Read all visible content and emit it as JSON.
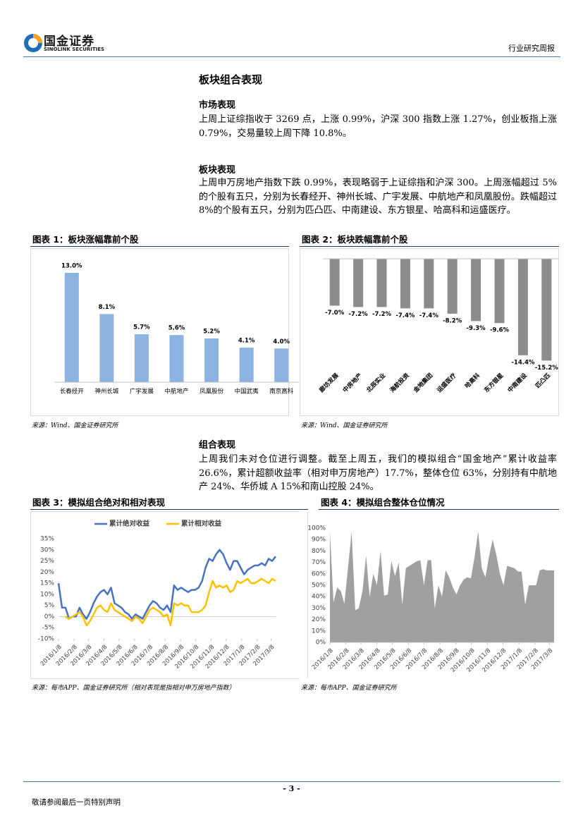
{
  "header": {
    "logo_cn": "国金证券",
    "logo_en": "SINOLINK SECURITIES",
    "report_type": "行业研究周报"
  },
  "title": "板块组合表现",
  "sections": [
    {
      "heading": "市场表现",
      "text": "上周上证综指收于 3269 点，上涨 0.99%，沪深 300 指数上涨 1.27%，创业板指上涨 0.79%，交易量较上周下降 10.8%。"
    },
    {
      "heading": "板块表现",
      "text": "上周申万房地产指数下跌 0.99%，表现略弱于上证综指和沪深 300。上周涨幅超过 5%的个股有五只，分别为长春经开、神州长城、广宇发展、中航地产和凤凰股份。跌幅超过 8%的个股有五只，分别为匹凸匹、中南建设、东方银星、哈高科和运盛医疗。"
    },
    {
      "heading": "组合表现",
      "text": "上周我们未对仓位进行调整。截至上周五，我们的模拟组合“国金地产”累计收益率 26.6%，累计超额收益率（相对申万房地产）17.7%，整体仓位 63%，分别持有中航地产 24%、华侨城 A 15%和南山控股 24%。"
    }
  ],
  "figures": [
    {
      "title": "图表 1：板块涨幅靠前个股",
      "source": "来源：Wind、国金证券研究所",
      "chart": {
        "type": "bar",
        "color": "#8db3e2",
        "categories": [
          "长春经开",
          "神州长城",
          "广宇发展",
          "中航地产",
          "凤凰股份",
          "中国武夷",
          "南京高科"
        ],
        "values": [
          13.0,
          8.1,
          5.7,
          5.6,
          5.2,
          4.1,
          4.0
        ],
        "value_labels": [
          "13.0%",
          "8.1%",
          "5.7%",
          "5.6%",
          "5.2%",
          "4.1%",
          "4.0%"
        ],
        "ylim": [
          0,
          14
        ]
      }
    },
    {
      "title": "图表 2：板块跌幅靠前个股",
      "source": "来源：Wind、国金证券研究所",
      "chart": {
        "type": "bar",
        "color": "#8c8c8c",
        "categories": [
          "廊坊发展",
          "中房地产",
          "北辰实业",
          "海航投资",
          "金地集团",
          "运盛医疗",
          "哈高科",
          "东方银星",
          "中南建设",
          "匹凸匹"
        ],
        "values": [
          -7.0,
          -7.2,
          -7.2,
          -7.4,
          -7.4,
          -8.2,
          -9.3,
          -9.6,
          -14.4,
          -15.2
        ],
        "value_labels": [
          "-7.0%",
          "-7.2%",
          "-7.2%",
          "-7.4%",
          "-7.4%",
          "-8.2%",
          "-9.3%",
          "-9.6%",
          "-14.4%",
          "-15.2%"
        ],
        "ylim": [
          -16,
          0
        ]
      }
    },
    {
      "title": "图表 3：模拟组合绝对和相对表现",
      "source": "来源：每市APP、国金证券研究所（相对表现是指相对申万房地产指数）",
      "chart": {
        "type": "line",
        "grid": false,
        "x": [
          "2016/1/8",
          "2016/1/15",
          "2016/1/22",
          "2016/1/29",
          "2016/2/5",
          "2016/2/12",
          "2016/2/19",
          "2016/2/26",
          "2016/3/4",
          "2016/3/11",
          "2016/3/18",
          "2016/3/25",
          "2016/4/1",
          "2016/4/8",
          "2016/4/15",
          "2016/4/22",
          "2016/4/29",
          "2016/5/6",
          "2016/5/13",
          "2016/5/20",
          "2016/5/27",
          "2016/6/3",
          "2016/6/10",
          "2016/6/17",
          "2016/6/24",
          "2016/7/1",
          "2016/7/8",
          "2016/7/15",
          "2016/7/22",
          "2016/7/29",
          "2016/8/5",
          "2016/8/12",
          "2016/8/19",
          "2016/8/26",
          "2016/9/2",
          "2016/9/9",
          "2016/9/16",
          "2016/9/23",
          "2016/9/30",
          "2016/10/7",
          "2016/10/14",
          "2016/10/21",
          "2016/10/28",
          "2016/11/4",
          "2016/11/11",
          "2016/11/18",
          "2016/11/25",
          "2016/12/2",
          "2016/12/9",
          "2016/12/16",
          "2016/12/23",
          "2016/12/30",
          "2017/1/6",
          "2017/1/13",
          "2017/1/20",
          "2017/1/27",
          "2017/2/3",
          "2017/2/10",
          "2017/2/17",
          "2017/2/24",
          "2017/3/3",
          "2017/3/10",
          "2017/3/17"
        ],
        "series": [
          {
            "name": "累计绝对收益",
            "color": "#4472c4",
            "values": [
              15,
              4,
              4,
              -1,
              0,
              0,
              4,
              1,
              -1,
              2,
              6,
              9,
              11,
              12,
              10,
              13,
              6,
              5,
              4,
              2,
              1,
              -1,
              1,
              0,
              -1,
              2,
              5,
              7,
              6,
              4,
              3,
              5,
              2,
              14,
              12,
              13,
              12,
              11,
              12,
              12,
              13,
              16,
              22,
              26,
              25,
              28,
              30,
              28,
              24,
              21,
              25,
              25,
              22,
              19,
              21,
              22,
              23,
              23,
              24,
              23,
              26,
              25,
              27
            ]
          },
          {
            "name": "累计相对收益",
            "color": "#ffc000",
            "values": [
              null,
              null,
              0,
              -1,
              0,
              1,
              2,
              0,
              -4,
              -2,
              1,
              4,
              5,
              3,
              2,
              6,
              3,
              2,
              1,
              0,
              -1,
              -2,
              0,
              -1,
              -3,
              0,
              3,
              4,
              3,
              2,
              0,
              1,
              -4,
              6,
              5,
              6,
              5,
              5,
              2,
              2,
              2,
              3,
              5,
              11,
              16,
              13,
              14,
              13,
              14,
              11,
              12,
              16,
              15,
              16,
              17,
              15,
              15,
              16,
              17,
              16,
              15,
              17,
              16
            ]
          }
        ],
        "xlim": [
          "2016/1/8",
          "2017/3/17"
        ],
        "xticks": [
          "2016/1/8",
          "2016/2/8",
          "2016/3/8",
          "2016/4/8",
          "2016/5/8",
          "2016/6/8",
          "2016/7/8",
          "2016/8/8",
          "2016/9/8",
          "2016/10/8",
          "2016/11/8",
          "2016/12/8",
          "2017/1/8",
          "2017/2/8",
          "2017/3/8"
        ],
        "ylim": [
          -10,
          35
        ],
        "yticks": [
          {
            "value": -10,
            "label": "-10%"
          },
          {
            "value": -5,
            "label": "-5%"
          },
          {
            "value": 0,
            "label": "0%"
          },
          {
            "value": 5,
            "label": "5%"
          },
          {
            "value": 10,
            "label": "10%"
          },
          {
            "value": 15,
            "label": "15%"
          },
          {
            "value": 20,
            "label": "20%"
          },
          {
            "value": 25,
            "label": "25%"
          },
          {
            "value": 30,
            "label": "30%"
          },
          {
            "value": 35,
            "label": "35%"
          }
        ],
        "legend": "top"
      }
    },
    {
      "title": "图表 4：模拟组合整体仓位情况",
      "source": "来源：每市APP、国金证券研究所",
      "chart": {
        "type": "area",
        "color": "#a0a0a0",
        "grid": false,
        "x": [
          "2016/1/8",
          "2016/1/15",
          "2016/1/22",
          "2016/1/29",
          "2016/2/5",
          "2016/2/12",
          "2016/2/19",
          "2016/2/26",
          "2016/3/4",
          "2016/3/11",
          "2016/3/18",
          "2016/3/25",
          "2016/4/1",
          "2016/4/8",
          "2016/4/15",
          "2016/4/22",
          "2016/4/29",
          "2016/5/6",
          "2016/5/13",
          "2016/5/20",
          "2016/5/27",
          "2016/6/3",
          "2016/6/10",
          "2016/6/17",
          "2016/6/24",
          "2016/7/1",
          "2016/7/8",
          "2016/7/15",
          "2016/7/22",
          "2016/7/29",
          "2016/8/5",
          "2016/8/12",
          "2016/8/19",
          "2016/8/26",
          "2016/9/2",
          "2016/9/9",
          "2016/9/16",
          "2016/9/23",
          "2016/9/30",
          "2016/10/7",
          "2016/10/14",
          "2016/10/21",
          "2016/10/28",
          "2016/11/4",
          "2016/11/11",
          "2016/11/18",
          "2016/11/25",
          "2016/12/2",
          "2016/12/9",
          "2016/12/16",
          "2016/12/23",
          "2016/12/30",
          "2017/1/6",
          "2017/1/13",
          "2017/1/20",
          "2017/1/27",
          "2017/2/3",
          "2017/2/10",
          "2017/2/17",
          "2017/2/24",
          "2017/3/3",
          "2017/3/10",
          "2017/3/17"
        ],
        "values": [
          97,
          35,
          48,
          45,
          34,
          65,
          97,
          28,
          30,
          45,
          76,
          40,
          60,
          50,
          80,
          41,
          42,
          71,
          58,
          70,
          33,
          65,
          67,
          69,
          71,
          72,
          50,
          72,
          72,
          30,
          50,
          40,
          63,
          57,
          48,
          42,
          50,
          55,
          57,
          56,
          75,
          97,
          65,
          57,
          75,
          90,
          77,
          60,
          50,
          67,
          66,
          65,
          62,
          62,
          33,
          50,
          50,
          50,
          63,
          64,
          63,
          63,
          63
        ],
        "xlim": [
          "2016/1/8",
          "2017/3/17"
        ],
        "xticks": [
          "2016/1/8",
          "2016/2/8",
          "2016/3/8",
          "2016/4/8",
          "2016/5/8",
          "2016/6/8",
          "2016/7/8",
          "2016/8/8",
          "2016/9/8",
          "2016/10/8",
          "2016/11/8",
          "2016/12/8",
          "2017/1/8",
          "2017/2/8",
          "2017/3/8"
        ],
        "ylim": [
          0,
          100
        ],
        "yticks": [
          {
            "value": 0,
            "label": "0%"
          },
          {
            "value": 10,
            "label": "10%"
          },
          {
            "value": 20,
            "label": "20%"
          },
          {
            "value": 30,
            "label": "30%"
          },
          {
            "value": 40,
            "label": "40%"
          },
          {
            "value": 50,
            "label": "50%"
          },
          {
            "value": 60,
            "label": "60%"
          },
          {
            "value": 70,
            "label": "70%"
          },
          {
            "value": 80,
            "label": "80%"
          },
          {
            "value": 90,
            "label": "90%"
          },
          {
            "value": 100,
            "label": "100%"
          }
        ]
      }
    }
  ],
  "footer": {
    "page": "- 3 -",
    "note": "敬请参阅最后一页特别声明"
  }
}
